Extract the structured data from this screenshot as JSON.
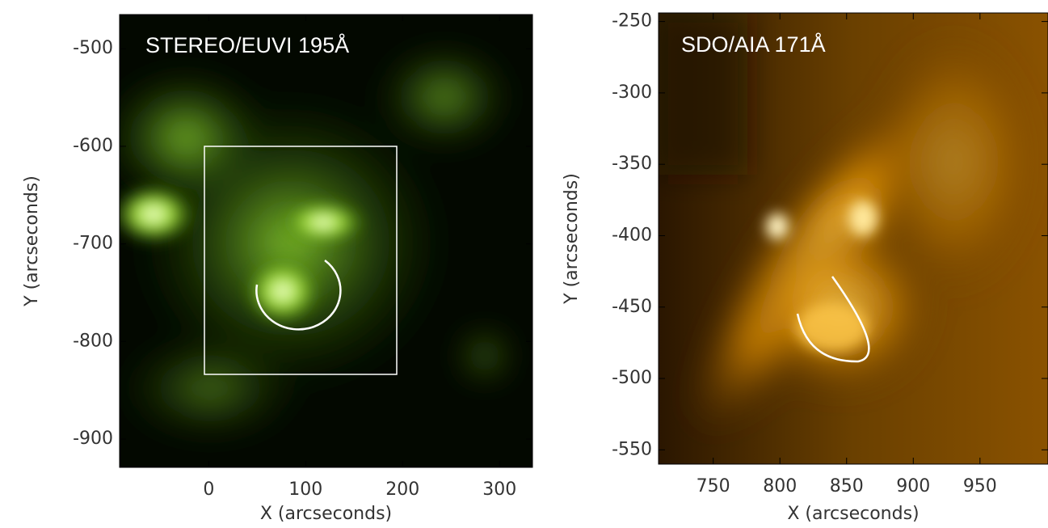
{
  "chart_data": [
    {
      "type": "image",
      "title": "STEREO/EUVI 195Å",
      "x_label": "X (arcseconds)",
      "y_label": "Y (arcseconds)",
      "xlim": [
        -92,
        334
      ],
      "ylim": [
        -929,
        -465
      ],
      "xticks": [
        0,
        100,
        200,
        300
      ],
      "yticks": [
        -900,
        -800,
        -700,
        -600,
        -500
      ]
    },
    {
      "type": "image",
      "title": "SDO/AIA 171Å",
      "x_label": "X (arcseconds)",
      "y_label": "Y (arcseconds)",
      "xlim": [
        709,
        1001
      ],
      "ylim": [
        -560,
        -244
      ],
      "xticks": [
        750,
        800,
        850,
        900,
        950
      ],
      "yticks": [
        -550,
        -500,
        -450,
        -400,
        -350,
        -300,
        -250
      ]
    }
  ]
}
